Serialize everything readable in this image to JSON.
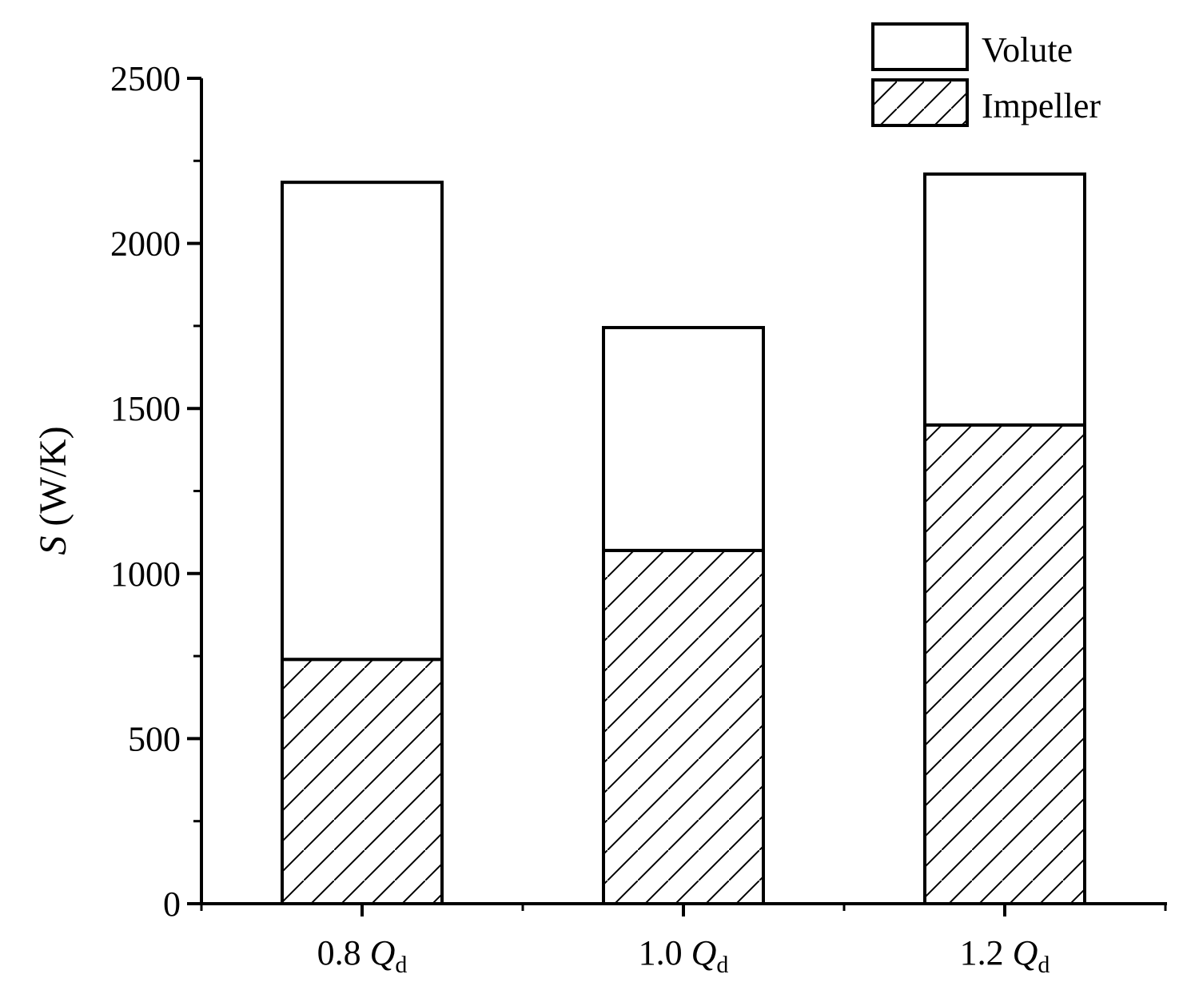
{
  "chart_data": {
    "type": "bar",
    "stacked": true,
    "categories": [
      {
        "label": "0.8",
        "sym": "Q",
        "sub": "d"
      },
      {
        "label": "1.0",
        "sym": "Q",
        "sub": "d"
      },
      {
        "label": "1.2",
        "sym": "Q",
        "sub": "d"
      }
    ],
    "series": [
      {
        "name": "Impeller",
        "values": [
          740,
          1070,
          1450
        ],
        "fill": "hatch"
      },
      {
        "name": "Volute",
        "values": [
          1445,
          675,
          760
        ],
        "fill": "#ffffff"
      }
    ],
    "ylabel": {
      "sym": "S",
      "unit": "(W/K)"
    },
    "ylim": [
      0,
      2500
    ],
    "yticks": [
      0,
      500,
      1000,
      1500,
      2000,
      2500
    ],
    "grid": false,
    "legend_position": "top-right",
    "colors": {
      "stroke": "#000000",
      "background": "#ffffff"
    }
  }
}
